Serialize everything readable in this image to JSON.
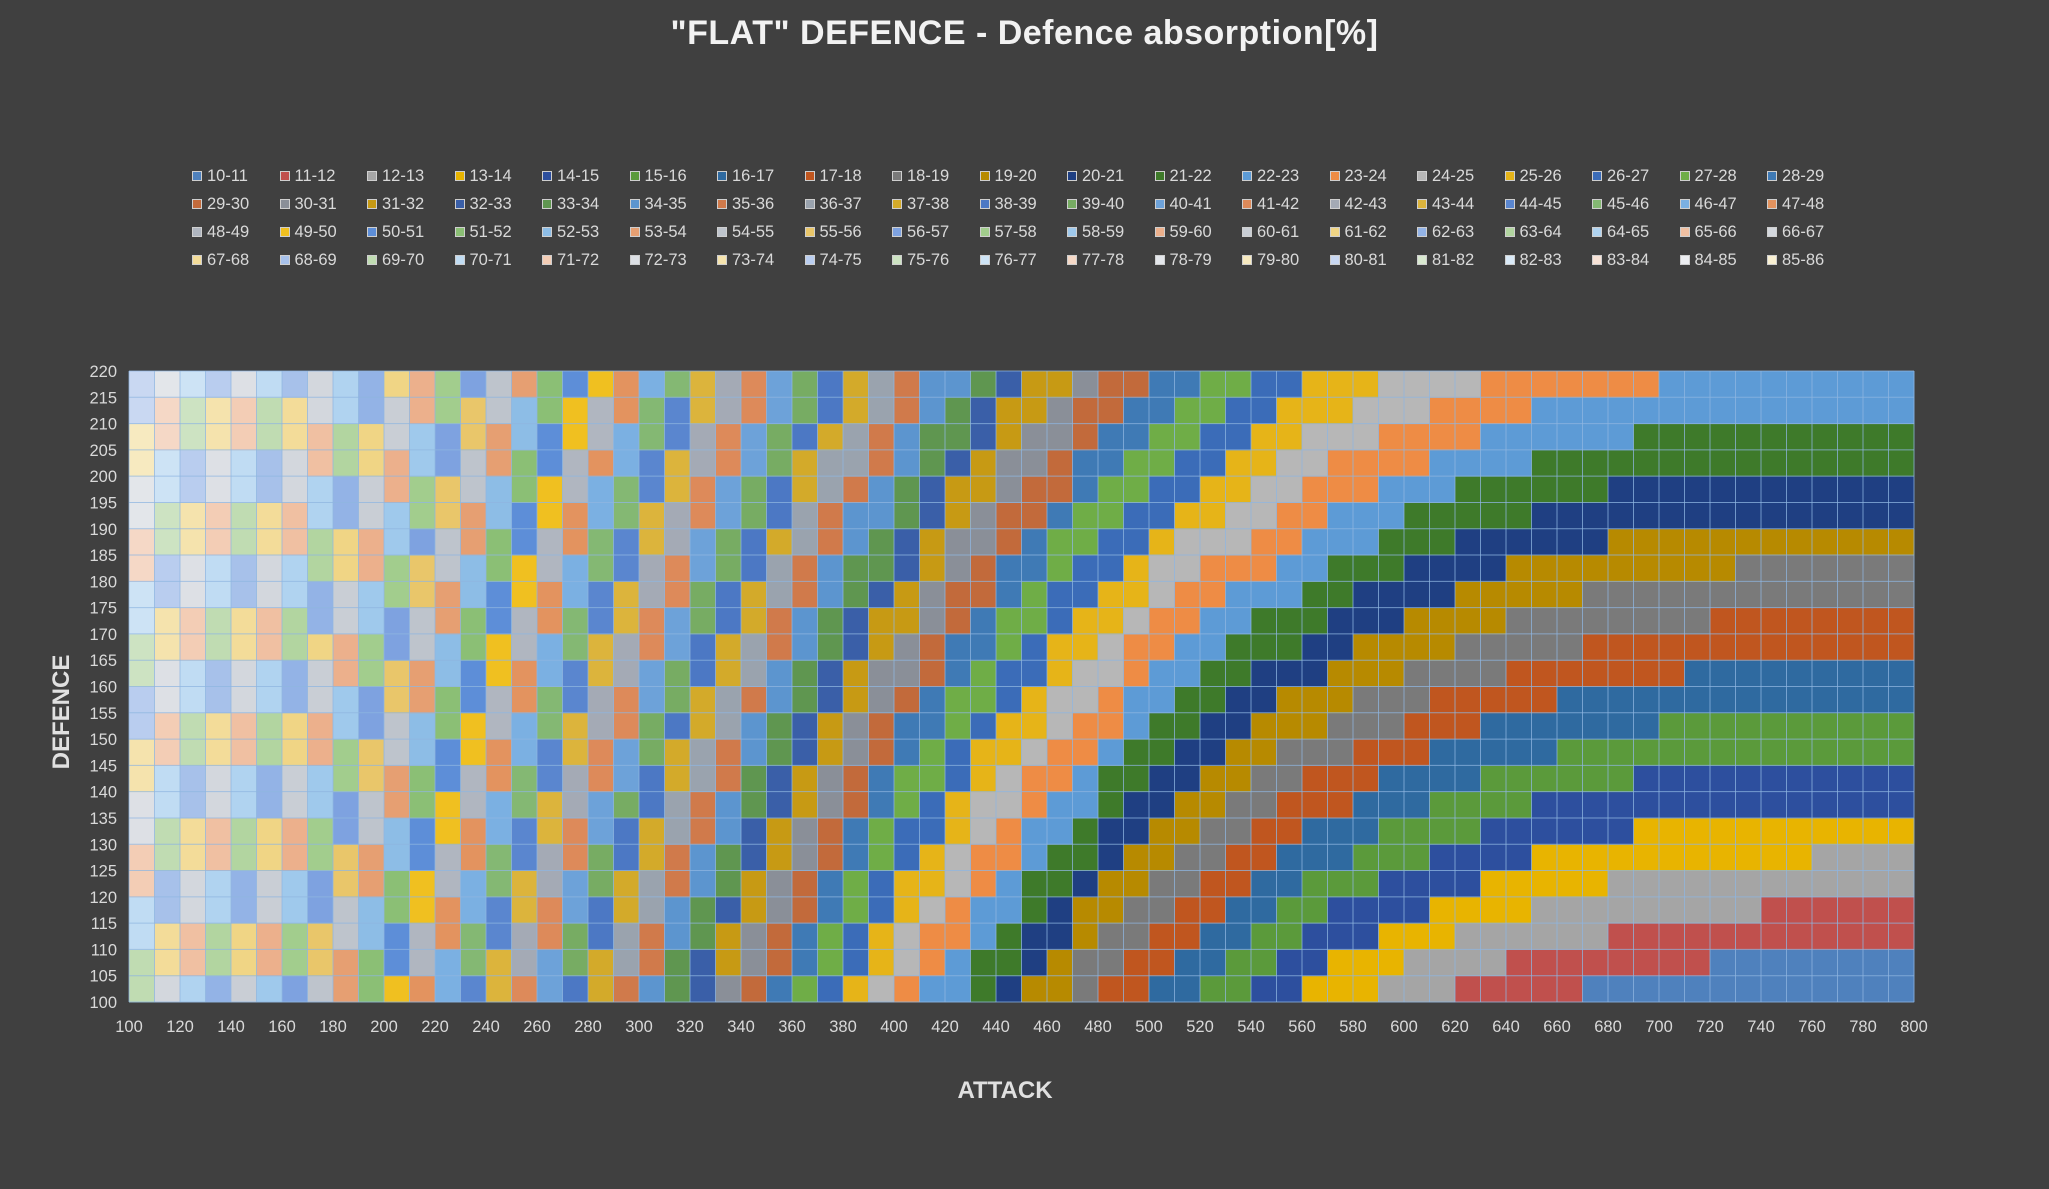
{
  "chart_data": {
    "type": "heatmap",
    "title": "\"FLAT\" DEFENCE - Defence absorption[%]",
    "xlabel": "ATTACK",
    "ylabel": "DEFENCE",
    "xlim": [
      100,
      800
    ],
    "ylim": [
      100,
      220
    ],
    "x_ticks": [
      "100",
      "120",
      "140",
      "160",
      "180",
      "200",
      "220",
      "240",
      "260",
      "280",
      "300",
      "320",
      "340",
      "360",
      "380",
      "400",
      "420",
      "440",
      "460",
      "480",
      "500",
      "520",
      "540",
      "560",
      "580",
      "600",
      "620",
      "640",
      "660",
      "680",
      "700",
      "720",
      "740",
      "760",
      "780",
      "800"
    ],
    "y_ticks": [
      "100",
      "105",
      "110",
      "115",
      "120",
      "125",
      "130",
      "135",
      "140",
      "145",
      "150",
      "155",
      "160",
      "165",
      "170",
      "175",
      "180",
      "185",
      "190",
      "195",
      "200",
      "205",
      "210",
      "215",
      "220"
    ],
    "grid": true,
    "legend_position": "top",
    "x_step": 10,
    "y_step": 5,
    "surface_levels": [
      {
        "attack": 800,
        "defence_at_level_boundary": [
          118,
          128,
          136,
          144,
          152,
          160,
          168,
          176,
          186,
          194,
          204,
          214
        ]
      },
      {
        "attack": 540,
        "defence": 220,
        "level": "18-19"
      },
      {
        "attack": 340,
        "defence": 100,
        "level": "24-25"
      }
    ],
    "series": [
      {
        "name": "10-11",
        "color": "#4f81bd"
      },
      {
        "name": "11-12",
        "color": "#c0504d"
      },
      {
        "name": "12-13",
        "color": "#a5a5a5"
      },
      {
        "name": "13-14",
        "color": "#e8b400"
      },
      {
        "name": "14-15",
        "color": "#2d4f9e"
      },
      {
        "name": "15-16",
        "color": "#5b9a3b"
      },
      {
        "name": "16-17",
        "color": "#2f6aa0"
      },
      {
        "name": "17-18",
        "color": "#c0561f"
      },
      {
        "name": "18-19",
        "color": "#7a7a7a"
      },
      {
        "name": "19-20",
        "color": "#b78a00"
      },
      {
        "name": "20-21",
        "color": "#1f3f82"
      },
      {
        "name": "21-22",
        "color": "#3e7a2a"
      },
      {
        "name": "22-23",
        "color": "#5d9bd6"
      },
      {
        "name": "23-24",
        "color": "#ee8c45"
      },
      {
        "name": "24-25",
        "color": "#b7b7b7"
      },
      {
        "name": "25-26",
        "color": "#e6b418"
      },
      {
        "name": "26-27",
        "color": "#3b6cb8"
      },
      {
        "name": "27-28",
        "color": "#6fad47"
      },
      {
        "name": "28-29",
        "color": "#3f7ab5"
      },
      {
        "name": "29-30",
        "color": "#c26a3b"
      },
      {
        "name": "30-31",
        "color": "#8a8f98"
      },
      {
        "name": "31-32",
        "color": "#c79a14"
      },
      {
        "name": "32-33",
        "color": "#3a5fa8"
      },
      {
        "name": "33-34",
        "color": "#5f9650"
      },
      {
        "name": "34-35",
        "color": "#5c95cf"
      },
      {
        "name": "35-36",
        "color": "#d07a4b"
      },
      {
        "name": "36-37",
        "color": "#9aa3ae"
      },
      {
        "name": "37-38",
        "color": "#d3aa2a"
      },
      {
        "name": "38-39",
        "color": "#4c78c4"
      },
      {
        "name": "39-40",
        "color": "#77ac63"
      },
      {
        "name": "40-41",
        "color": "#6da2d9"
      },
      {
        "name": "41-42",
        "color": "#dd8a5a"
      },
      {
        "name": "42-43",
        "color": "#a4aab5"
      },
      {
        "name": "43-44",
        "color": "#dcb43c"
      },
      {
        "name": "44-45",
        "color": "#5a86cf"
      },
      {
        "name": "45-46",
        "color": "#84b873"
      },
      {
        "name": "46-47",
        "color": "#7bb0e2"
      },
      {
        "name": "47-48",
        "color": "#e3935f"
      },
      {
        "name": "48-49",
        "color": "#b0b6c0"
      },
      {
        "name": "49-50",
        "color": "#f0c020"
      },
      {
        "name": "50-51",
        "color": "#5d8ed8"
      },
      {
        "name": "51-52",
        "color": "#8bbf75"
      },
      {
        "name": "52-53",
        "color": "#8dbde6"
      },
      {
        "name": "53-54",
        "color": "#e69f72"
      },
      {
        "name": "54-55",
        "color": "#bec4cc"
      },
      {
        "name": "55-56",
        "color": "#e9c66a"
      },
      {
        "name": "56-57",
        "color": "#7ea2e0"
      },
      {
        "name": "57-58",
        "color": "#a2cd8d"
      },
      {
        "name": "58-59",
        "color": "#9fc9ec"
      },
      {
        "name": "59-60",
        "color": "#ecb08c"
      },
      {
        "name": "60-61",
        "color": "#c9ced5"
      },
      {
        "name": "61-62",
        "color": "#f0d585"
      },
      {
        "name": "62-63",
        "color": "#93b3e6"
      },
      {
        "name": "63-64",
        "color": "#b2d5a0"
      },
      {
        "name": "64-65",
        "color": "#b0d3f0"
      },
      {
        "name": "65-66",
        "color": "#f0c0a2"
      },
      {
        "name": "66-67",
        "color": "#d3d7dd"
      },
      {
        "name": "67-68",
        "color": "#f3dc99"
      },
      {
        "name": "68-69",
        "color": "#a7c1ea"
      },
      {
        "name": "69-70",
        "color": "#c0dcb2"
      },
      {
        "name": "70-71",
        "color": "#c0dcf3"
      },
      {
        "name": "71-72",
        "color": "#f3cdb5"
      },
      {
        "name": "72-73",
        "color": "#dde0e5"
      },
      {
        "name": "73-74",
        "color": "#f5e3ad"
      },
      {
        "name": "74-75",
        "color": "#b9cdef"
      },
      {
        "name": "75-76",
        "color": "#cde3c2"
      },
      {
        "name": "76-77",
        "color": "#cde3f5"
      },
      {
        "name": "77-78",
        "color": "#f5d8c6"
      },
      {
        "name": "78-79",
        "color": "#e3e6ea"
      },
      {
        "name": "79-80",
        "color": "#f7eac0"
      },
      {
        "name": "80-81",
        "color": "#c9d8f2"
      },
      {
        "name": "81-82",
        "color": "#d9e9d0"
      },
      {
        "name": "82-83",
        "color": "#d9e9f7"
      },
      {
        "name": "83-84",
        "color": "#f7e2d6"
      },
      {
        "name": "84-85",
        "color": "#eceef1"
      },
      {
        "name": "85-86",
        "color": "#f9f0d2"
      }
    ]
  }
}
